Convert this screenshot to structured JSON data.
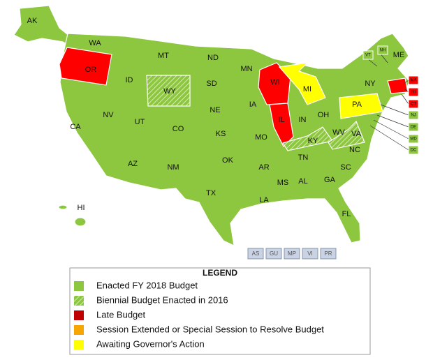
{
  "states": [
    "AK",
    "WA",
    "MT",
    "ND",
    "MN",
    "OR",
    "ID",
    "WY",
    "SD",
    "WI",
    "MI",
    "ME",
    "NY",
    "PA",
    "NV",
    "UT",
    "CO",
    "NE",
    "IA",
    "IL",
    "IN",
    "OH",
    "CA",
    "KS",
    "MO",
    "KY",
    "WV",
    "VA",
    "AZ",
    "NM",
    "OK",
    "AR",
    "TN",
    "NC",
    "SC",
    "TX",
    "MS",
    "AL",
    "GA",
    "LA",
    "FL",
    "HI"
  ],
  "callouts": [
    "VT",
    "NH",
    "MA",
    "RI",
    "CT",
    "NJ",
    "DE",
    "MD",
    "DC"
  ],
  "territories": [
    "AS",
    "GU",
    "MP",
    "VI",
    "PR"
  ],
  "legend": {
    "title": "LEGEND",
    "items": [
      "Enacted FY 2018 Budget",
      "Biennial Budget Enacted in 2016",
      "Late Budget",
      "Session Extended or Special Session to Resolve Budget",
      "Awaiting Governor's Action"
    ]
  }
}
